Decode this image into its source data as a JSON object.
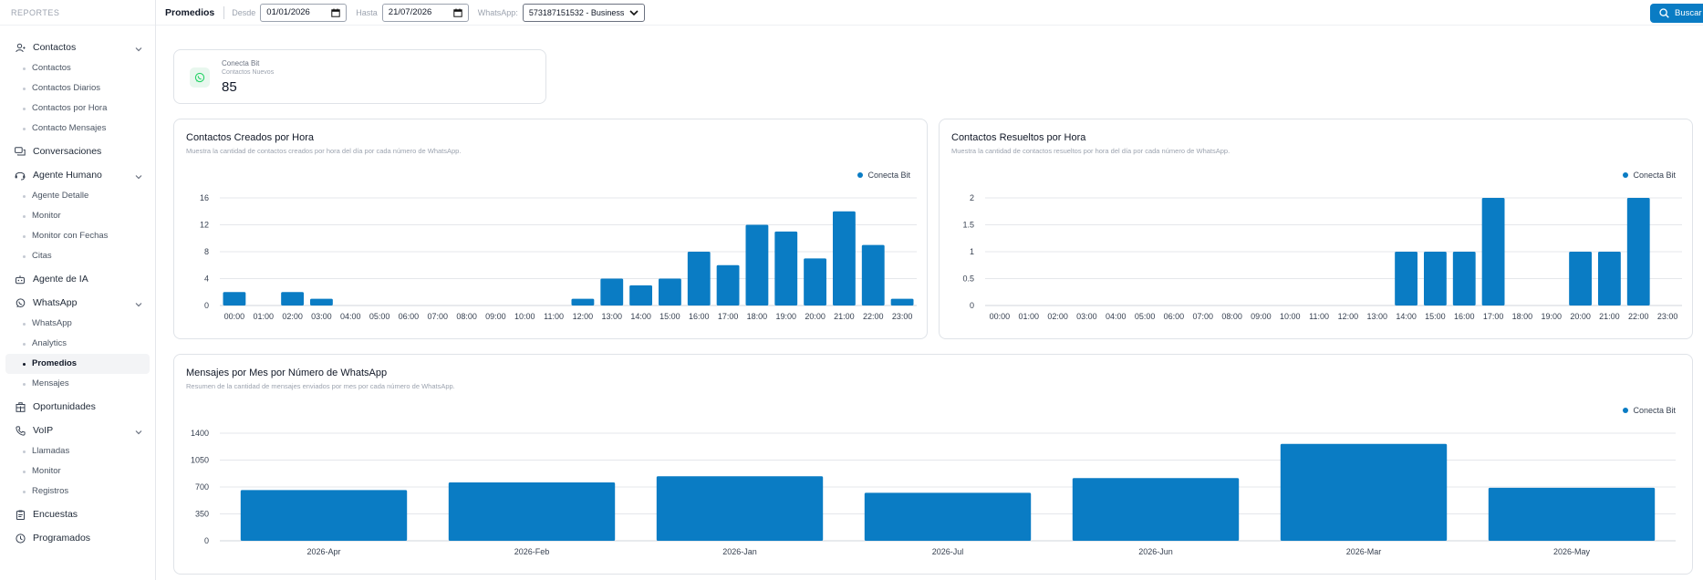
{
  "sidebar": {
    "header": "REPORTES",
    "groups": [
      {
        "label": "Contactos",
        "icon": "user-icon",
        "expanded": true,
        "items": [
          "Contactos",
          "Contactos Diarios",
          "Contactos por Hora",
          "Contacto Mensajes"
        ]
      },
      {
        "label": "Conversaciones",
        "icon": "chat-icon",
        "expanded": false,
        "items": []
      },
      {
        "label": "Agente Humano",
        "icon": "headset-icon",
        "expanded": true,
        "items": [
          "Agente Detalle",
          "Monitor",
          "Monitor con Fechas",
          "Citas"
        ]
      },
      {
        "label": "Agente de IA",
        "icon": "robot-icon",
        "expanded": false,
        "items": []
      },
      {
        "label": "WhatsApp",
        "icon": "whatsapp-icon",
        "expanded": true,
        "items": [
          "WhatsApp",
          "Analytics",
          "Promedios",
          "Mensajes"
        ]
      },
      {
        "label": "Oportunidades",
        "icon": "building-icon",
        "expanded": false,
        "items": []
      },
      {
        "label": "VoIP",
        "icon": "phone-icon",
        "expanded": true,
        "items": [
          "Llamadas",
          "Monitor",
          "Registros"
        ]
      },
      {
        "label": "Encuestas",
        "icon": "clipboard-icon",
        "expanded": false,
        "items": []
      },
      {
        "label": "Programados",
        "icon": "clock-icon",
        "expanded": false,
        "items": []
      }
    ],
    "active_item": "Promedios"
  },
  "topbar": {
    "title": "Promedios",
    "from_label": "Desde",
    "from_value": "01/01/2026",
    "to_label": "Hasta",
    "to_value": "21/07/2026",
    "whatsapp_label": "WhatsApp:",
    "whatsapp_value": "573187151532 - Business",
    "search_label": "Buscar"
  },
  "stat": {
    "name": "Conecta Bit",
    "subtitle": "Contactos Nuevos",
    "value": "85"
  },
  "colors": {
    "accent": "#0a7cc4",
    "whatsapp_green": "#25d366"
  },
  "charts": {
    "created": {
      "title": "Contactos Creados por Hora",
      "description": "Muestra la cantidad de contactos creados por hora del día por cada número de WhatsApp.",
      "legend": "Conecta Bit"
    },
    "resolved": {
      "title": "Contactos Resueltos por Hora",
      "description": "Muestra la cantidad de contactos resueltos por hora del día por cada número de WhatsApp.",
      "legend": "Conecta Bit"
    },
    "monthly": {
      "title": "Mensajes por Mes por Número de WhatsApp",
      "description": "Resumen de la cantidad de mensajes enviados por mes por cada número de WhatsApp.",
      "legend": "Conecta Bit"
    }
  },
  "chart_data": [
    {
      "type": "bar",
      "title": "Contactos Creados por Hora",
      "categories": [
        "00:00",
        "01:00",
        "02:00",
        "03:00",
        "04:00",
        "05:00",
        "06:00",
        "07:00",
        "08:00",
        "09:00",
        "10:00",
        "11:00",
        "12:00",
        "13:00",
        "14:00",
        "15:00",
        "16:00",
        "17:00",
        "18:00",
        "19:00",
        "20:00",
        "21:00",
        "22:00",
        "23:00"
      ],
      "series": [
        {
          "name": "Conecta Bit",
          "values": [
            2,
            0,
            2,
            1,
            0,
            0,
            0,
            0,
            0,
            0,
            0,
            0,
            1,
            4,
            3,
            4,
            8,
            6,
            12,
            11,
            7,
            14,
            9,
            1
          ]
        }
      ],
      "yticks": [
        "0",
        "4",
        "8",
        "12",
        "16"
      ],
      "ylim": [
        0,
        16
      ],
      "legend_position": "top-right",
      "grid": true
    },
    {
      "type": "bar",
      "title": "Contactos Resueltos por Hora",
      "categories": [
        "00:00",
        "01:00",
        "02:00",
        "03:00",
        "04:00",
        "05:00",
        "06:00",
        "07:00",
        "08:00",
        "09:00",
        "10:00",
        "11:00",
        "12:00",
        "13:00",
        "14:00",
        "15:00",
        "16:00",
        "17:00",
        "18:00",
        "19:00",
        "20:00",
        "21:00",
        "22:00",
        "23:00"
      ],
      "series": [
        {
          "name": "Conecta Bit",
          "values": [
            0,
            0,
            0,
            0,
            0,
            0,
            0,
            0,
            0,
            0,
            0,
            0,
            0,
            0,
            1,
            1,
            1,
            2,
            0,
            0,
            1,
            1,
            2,
            0
          ]
        }
      ],
      "yticks": [
        "0",
        "0.5",
        "1",
        "1.5",
        "2"
      ],
      "ylim": [
        0,
        2
      ],
      "legend_position": "top-right",
      "grid": true
    },
    {
      "type": "bar",
      "title": "Mensajes por Mes por Número de WhatsApp",
      "categories": [
        "2026-Apr",
        "2026-Feb",
        "2026-Jan",
        "2026-Jul",
        "2026-Jun",
        "2026-Mar",
        "2026-May"
      ],
      "series": [
        {
          "name": "Conecta Bit",
          "values": [
            660,
            760,
            840,
            625,
            815,
            1260,
            690
          ]
        }
      ],
      "yticks": [
        "0",
        "350",
        "700",
        "1050",
        "1400"
      ],
      "ylim": [
        0,
        1400
      ],
      "legend_position": "top-right",
      "grid": true
    }
  ]
}
